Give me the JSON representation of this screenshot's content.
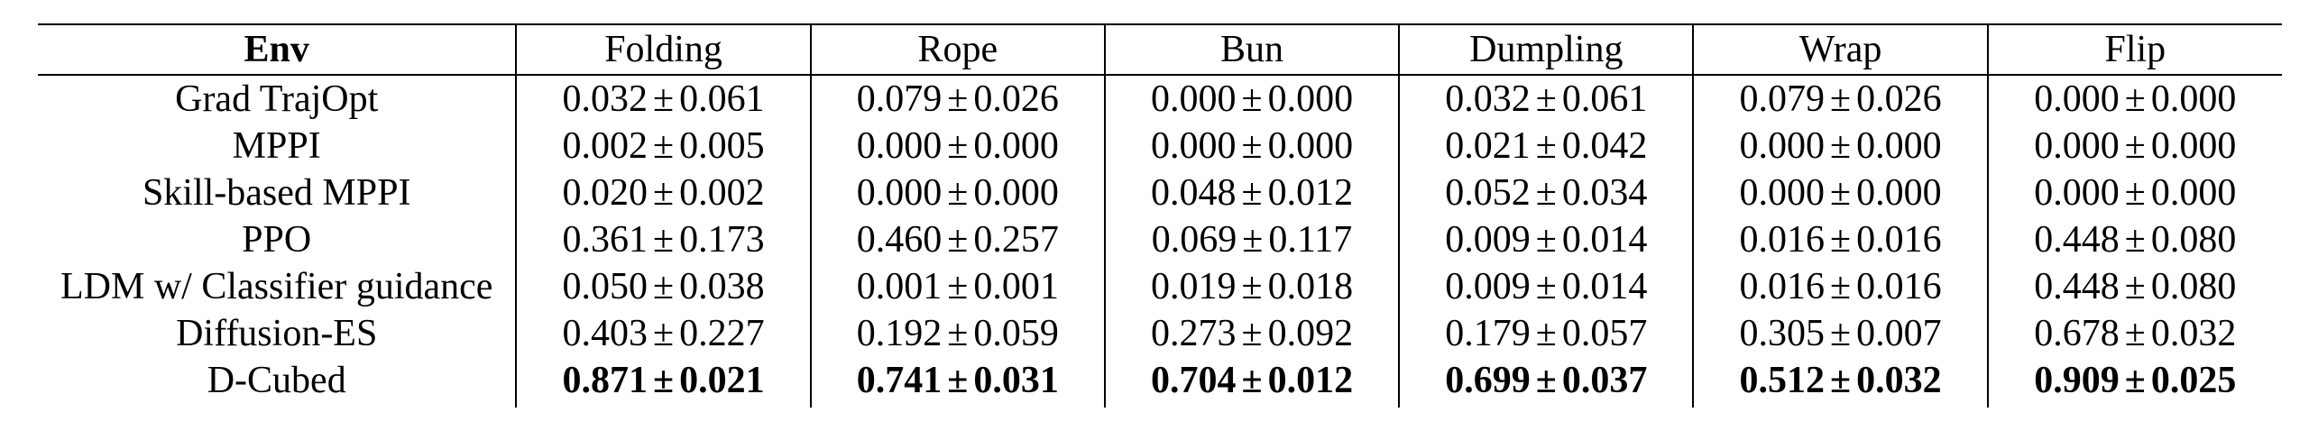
{
  "table": {
    "header": {
      "env_label": "Env",
      "columns": [
        "Folding",
        "Rope",
        "Bun",
        "Dumpling",
        "Wrap",
        "Flip"
      ]
    },
    "pm_symbol": "±",
    "rows": [
      {
        "method": "Grad TrajOpt",
        "values": [
          {
            "mean": "0.032",
            "std": "0.061"
          },
          {
            "mean": "0.079",
            "std": "0.026"
          },
          {
            "mean": "0.000",
            "std": "0.000"
          },
          {
            "mean": "0.032",
            "std": "0.061"
          },
          {
            "mean": "0.079",
            "std": "0.026"
          },
          {
            "mean": "0.000",
            "std": "0.000"
          }
        ]
      },
      {
        "method": "MPPI",
        "values": [
          {
            "mean": "0.002",
            "std": "0.005"
          },
          {
            "mean": "0.000",
            "std": "0.000"
          },
          {
            "mean": "0.000",
            "std": "0.000"
          },
          {
            "mean": "0.021",
            "std": "0.042"
          },
          {
            "mean": "0.000",
            "std": "0.000"
          },
          {
            "mean": "0.000",
            "std": "0.000"
          }
        ]
      },
      {
        "method": "Skill-based MPPI",
        "values": [
          {
            "mean": "0.020",
            "std": "0.002"
          },
          {
            "mean": "0.000",
            "std": "0.000"
          },
          {
            "mean": "0.048",
            "std": "0.012"
          },
          {
            "mean": "0.052",
            "std": "0.034"
          },
          {
            "mean": "0.000",
            "std": "0.000"
          },
          {
            "mean": "0.000",
            "std": "0.000"
          }
        ]
      },
      {
        "method": "PPO",
        "values": [
          {
            "mean": "0.361",
            "std": "0.173"
          },
          {
            "mean": "0.460",
            "std": "0.257"
          },
          {
            "mean": "0.069",
            "std": "0.117"
          },
          {
            "mean": "0.009",
            "std": "0.014"
          },
          {
            "mean": "0.016",
            "std": "0.016"
          },
          {
            "mean": "0.448",
            "std": "0.080"
          }
        ]
      },
      {
        "method": "LDM w/ Classifier guidance",
        "values": [
          {
            "mean": "0.050",
            "std": "0.038"
          },
          {
            "mean": "0.001",
            "std": "0.001"
          },
          {
            "mean": "0.019",
            "std": "0.018"
          },
          {
            "mean": "0.009",
            "std": "0.014"
          },
          {
            "mean": "0.016",
            "std": "0.016"
          },
          {
            "mean": "0.448",
            "std": "0.080"
          }
        ]
      },
      {
        "method": "Diffusion-ES",
        "values": [
          {
            "mean": "0.403",
            "std": "0.227"
          },
          {
            "mean": "0.192",
            "std": "0.059"
          },
          {
            "mean": "0.273",
            "std": "0.092"
          },
          {
            "mean": "0.179",
            "std": "0.057"
          },
          {
            "mean": "0.305",
            "std": "0.007"
          },
          {
            "mean": "0.678",
            "std": "0.032"
          }
        ]
      },
      {
        "method": "D-Cubed",
        "bold": true,
        "values": [
          {
            "mean": "0.871",
            "std": "0.021"
          },
          {
            "mean": "0.741",
            "std": "0.031"
          },
          {
            "mean": "0.704",
            "std": "0.012"
          },
          {
            "mean": "0.699",
            "std": "0.037"
          },
          {
            "mean": "0.512",
            "std": "0.032"
          },
          {
            "mean": "0.909",
            "std": "0.025"
          }
        ]
      }
    ]
  }
}
